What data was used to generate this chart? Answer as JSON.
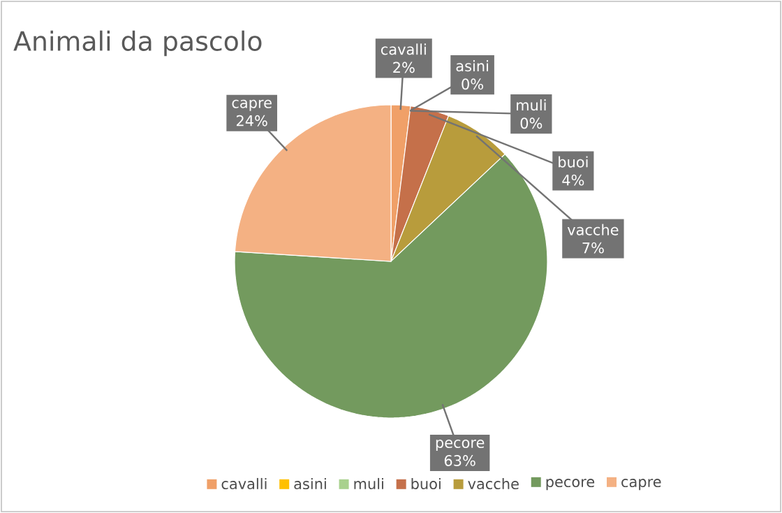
{
  "chart_data": {
    "type": "pie",
    "title": "Animali da pascolo",
    "categories": [
      "cavalli",
      "asini",
      "muli",
      "buoi",
      "vacche",
      "pecore",
      "capre"
    ],
    "values": [
      2,
      0,
      0,
      4,
      7,
      63,
      24
    ],
    "value_labels": [
      "2%",
      "0%",
      "0%",
      "4%",
      "7%",
      "63%",
      "24%"
    ],
    "colors": [
      "#f0a068",
      "#ffc000",
      "#a9d18e",
      "#c5704a",
      "#b89c3c",
      "#739a5e",
      "#f4b183"
    ],
    "legend": "bottom"
  }
}
